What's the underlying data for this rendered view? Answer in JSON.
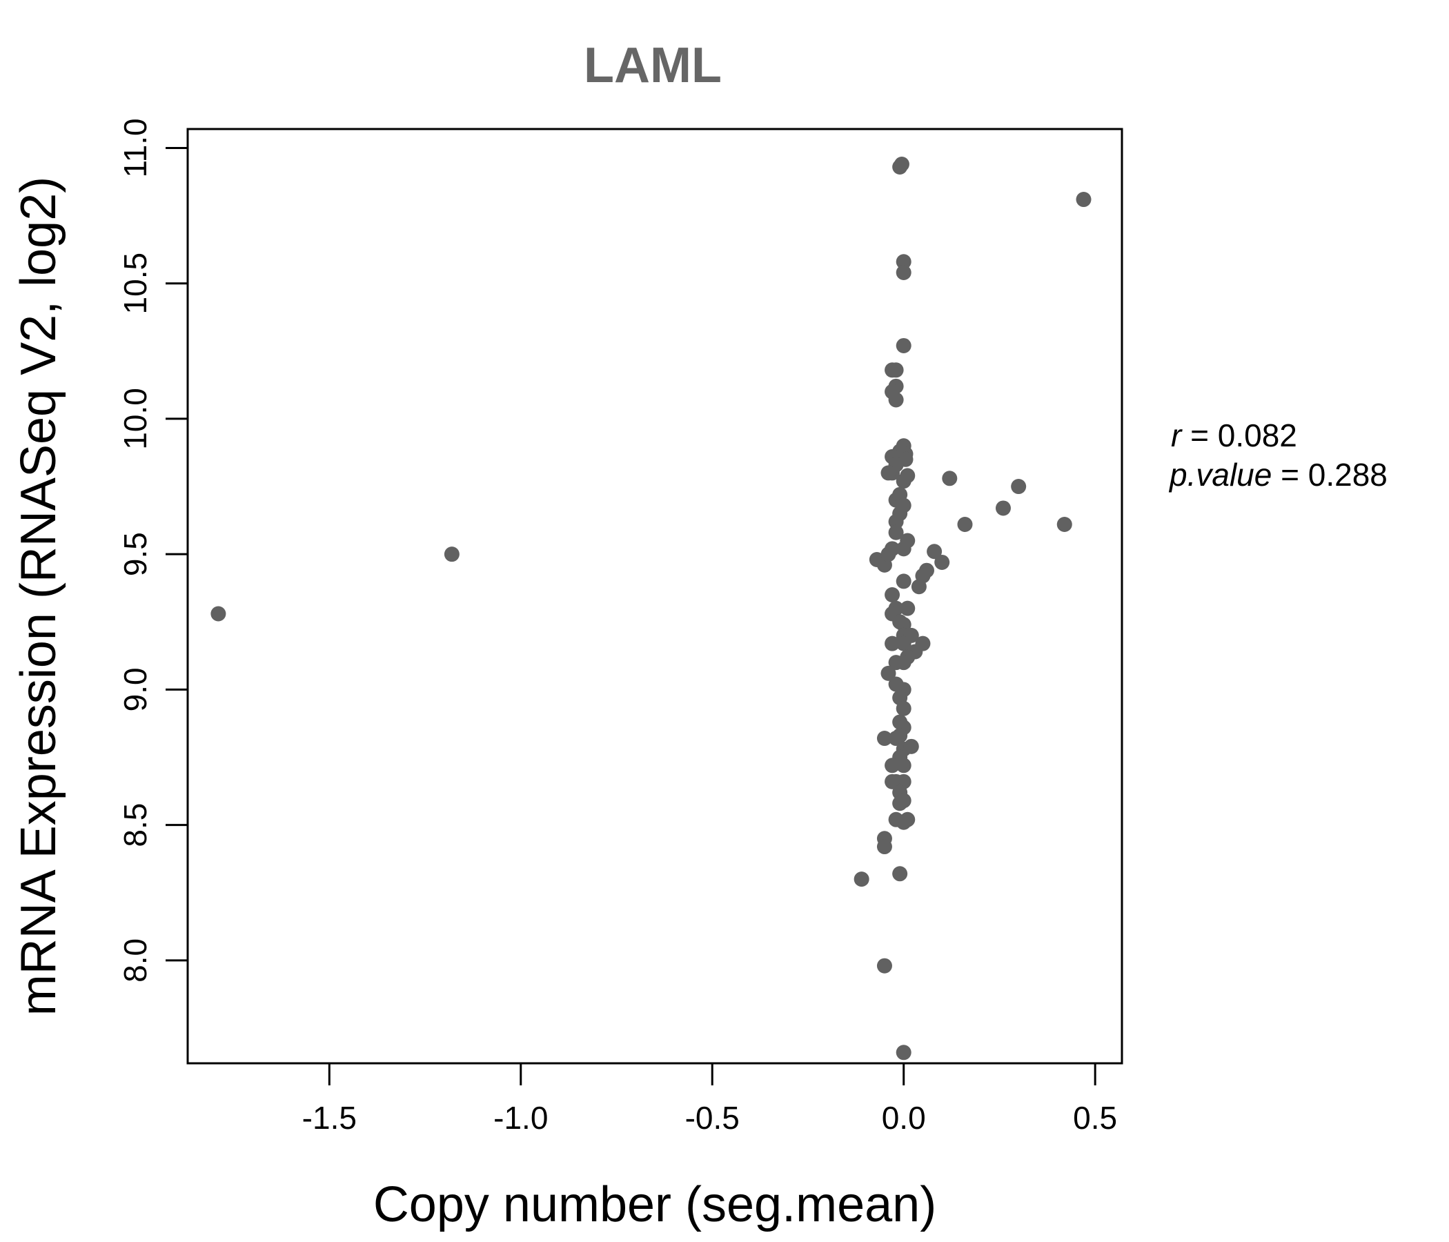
{
  "chart_data": {
    "type": "scatter",
    "title": "LAML",
    "xlabel": "Copy number (seg.mean)",
    "ylabel": "mRNA Expression (RNASeq V2, log2)",
    "xlim": [
      -1.87,
      0.57
    ],
    "ylim": [
      7.62,
      11.07
    ],
    "xticks": [
      -1.5,
      -1.0,
      -0.5,
      0.0,
      0.5
    ],
    "xtick_labels": [
      "-1.5",
      "-1.0",
      "-0.5",
      "0.0",
      "0.5"
    ],
    "yticks": [
      8.0,
      8.5,
      9.0,
      9.5,
      10.0,
      10.5,
      11.0
    ],
    "ytick_labels": [
      "8.0",
      "8.5",
      "9.0",
      "9.5",
      "10.0",
      "10.5",
      "11.0"
    ],
    "point_color": "#616161",
    "grid": false,
    "annotation": {
      "r_label": "r",
      "r_value": "0.082",
      "p_label": "p.value",
      "p_value": "0.288"
    },
    "x": [
      -1.79,
      -1.18,
      0.47,
      -0.01,
      -0.005,
      0.0,
      0.0,
      0.0,
      -0.03,
      -0.02,
      -0.02,
      -0.03,
      -0.02,
      -0.03,
      0.12,
      0.3,
      0.26,
      0.42,
      0.16,
      0.0,
      0.005,
      -0.01,
      0.005,
      -0.03,
      -0.02,
      -0.04,
      0.0,
      0.01,
      -0.02,
      -0.01,
      0.0,
      -0.01,
      -0.02,
      -0.07,
      -0.05,
      -0.04,
      -0.03,
      0.0,
      0.01,
      -0.02,
      0.06,
      0.05,
      0.04,
      0.08,
      0.1,
      -0.03,
      0.0,
      -0.02,
      0.01,
      -0.03,
      -0.01,
      0.0,
      0.0,
      0.02,
      -0.03,
      0.0,
      0.05,
      0.03,
      0.01,
      -0.02,
      0.0,
      -0.04,
      -0.02,
      0.0,
      -0.01,
      0.0,
      -0.01,
      0.0,
      -0.01,
      -0.02,
      -0.05,
      0.0,
      0.02,
      -0.01,
      0.0,
      -0.03,
      -0.02,
      0.0,
      -0.03,
      -0.01,
      -0.01,
      0.0,
      -0.02,
      0.01,
      0.0,
      -0.05,
      -0.05,
      -0.11,
      -0.01,
      -0.05,
      0.0
    ],
    "y": [
      9.28,
      9.5,
      10.81,
      10.93,
      10.94,
      10.58,
      10.54,
      10.27,
      10.18,
      10.18,
      10.12,
      10.1,
      10.07,
      9.8,
      9.78,
      9.75,
      9.67,
      9.61,
      9.61,
      9.9,
      9.87,
      9.88,
      9.85,
      9.86,
      9.83,
      9.8,
      9.77,
      9.79,
      9.7,
      9.72,
      9.68,
      9.65,
      9.62,
      9.48,
      9.46,
      9.5,
      9.52,
      9.52,
      9.55,
      9.58,
      9.44,
      9.42,
      9.38,
      9.51,
      9.47,
      9.35,
      9.4,
      9.3,
      9.3,
      9.28,
      9.25,
      9.24,
      9.2,
      9.2,
      9.17,
      9.17,
      9.17,
      9.14,
      9.12,
      9.1,
      9.1,
      9.06,
      9.02,
      9.0,
      8.97,
      8.93,
      8.88,
      8.86,
      8.83,
      8.82,
      8.82,
      8.78,
      8.79,
      8.75,
      8.72,
      8.72,
      8.66,
      8.66,
      8.66,
      8.62,
      8.58,
      8.59,
      8.52,
      8.52,
      8.51,
      8.45,
      8.42,
      8.3,
      8.32,
      7.98,
      7.66
    ]
  }
}
